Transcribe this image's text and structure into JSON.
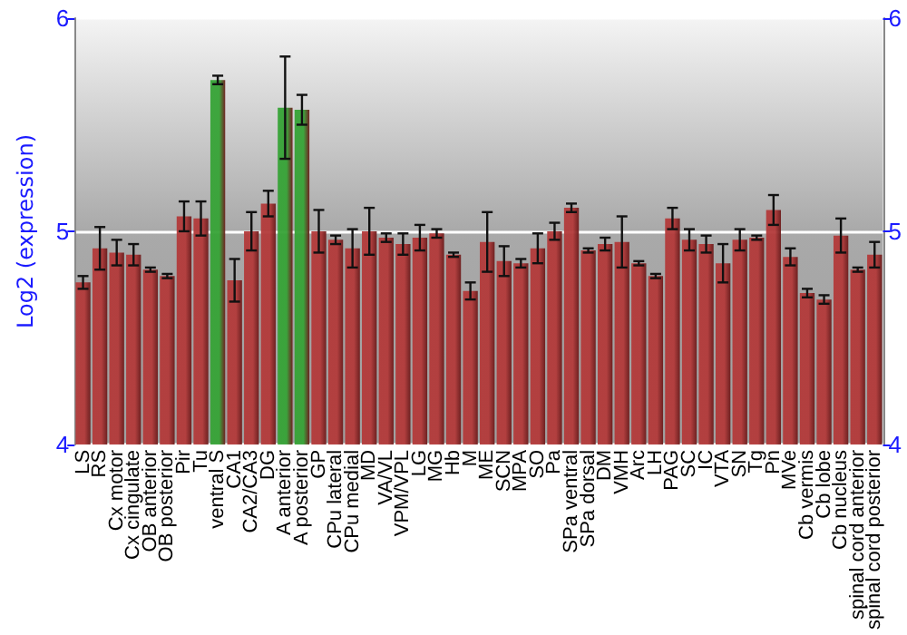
{
  "chart_data": {
    "type": "bar",
    "ylabel": "Log2 (expression)",
    "categories": [
      "LS",
      "RS",
      "Cx motor",
      "Cx cingulate",
      "OB anterior",
      "OB posterior",
      "Pir",
      "Tu",
      "ventral S",
      "CA1",
      "CA2/CA3",
      "DG",
      "A anterior",
      "A posterior",
      "GP",
      "CPu lateral",
      "CPu medial",
      "MD",
      "VA/VL",
      "VPM/VPL",
      "LG",
      "MG",
      "Hb",
      "M",
      "ME",
      "SCN",
      "MPA",
      "SO",
      "Pa",
      "SPa ventral",
      "SPa dorsal",
      "DM",
      "VMH",
      "Arc",
      "LH",
      "PAG",
      "SC",
      "IC",
      "VTA",
      "SN",
      "Tg",
      "Pn",
      "MVe",
      "Cb vermis",
      "Cb lobe",
      "Cb nucleus",
      "spinal cord anterior",
      "spinal cord posterior"
    ],
    "values": [
      4.76,
      4.92,
      4.9,
      4.89,
      4.82,
      4.79,
      5.07,
      5.06,
      5.71,
      4.77,
      5.0,
      5.13,
      5.58,
      5.57,
      5.0,
      4.96,
      4.92,
      5.0,
      4.97,
      4.94,
      4.97,
      4.99,
      4.89,
      4.72,
      4.95,
      4.86,
      4.85,
      4.92,
      5.0,
      5.11,
      4.91,
      4.94,
      4.95,
      4.85,
      4.79,
      5.06,
      4.96,
      4.94,
      4.85,
      4.96,
      4.97,
      5.1,
      4.88,
      4.71,
      4.68,
      4.98,
      4.82,
      4.89
    ],
    "errors": [
      0.03,
      0.1,
      0.06,
      0.05,
      0.01,
      0.01,
      0.07,
      0.08,
      0.02,
      0.1,
      0.09,
      0.06,
      0.24,
      0.07,
      0.1,
      0.02,
      0.09,
      0.11,
      0.02,
      0.05,
      0.06,
      0.02,
      0.01,
      0.04,
      0.14,
      0.07,
      0.02,
      0.07,
      0.04,
      0.02,
      0.01,
      0.03,
      0.12,
      0.01,
      0.01,
      0.05,
      0.05,
      0.04,
      0.09,
      0.05,
      0.01,
      0.07,
      0.04,
      0.02,
      0.02,
      0.08,
      0.01,
      0.06
    ],
    "colors": [
      "#b33a3a",
      "#b33a3a",
      "#b33a3a",
      "#b33a3a",
      "#b33a3a",
      "#b33a3a",
      "#b33a3a",
      "#b33a3a",
      "#36a336",
      "#b33a3a",
      "#b33a3a",
      "#b33a3a",
      "#36a336",
      "#36a336",
      "#b33a3a",
      "#b33a3a",
      "#b33a3a",
      "#b33a3a",
      "#b33a3a",
      "#b33a3a",
      "#b33a3a",
      "#b33a3a",
      "#b33a3a",
      "#b33a3a",
      "#b33a3a",
      "#b33a3a",
      "#b33a3a",
      "#b33a3a",
      "#b33a3a",
      "#b33a3a",
      "#b33a3a",
      "#b33a3a",
      "#b33a3a",
      "#b33a3a",
      "#b33a3a",
      "#b33a3a",
      "#b33a3a",
      "#b33a3a",
      "#b33a3a",
      "#b33a3a",
      "#b33a3a",
      "#b33a3a",
      "#b33a3a",
      "#b33a3a",
      "#b33a3a",
      "#b33a3a",
      "#b33a3a",
      "#b33a3a"
    ],
    "ylim": [
      4,
      6
    ],
    "yticks": [
      4,
      5,
      6
    ],
    "y2lim": [
      4,
      6
    ],
    "y2ticks": [
      4,
      5,
      6
    ],
    "grid": "y"
  }
}
